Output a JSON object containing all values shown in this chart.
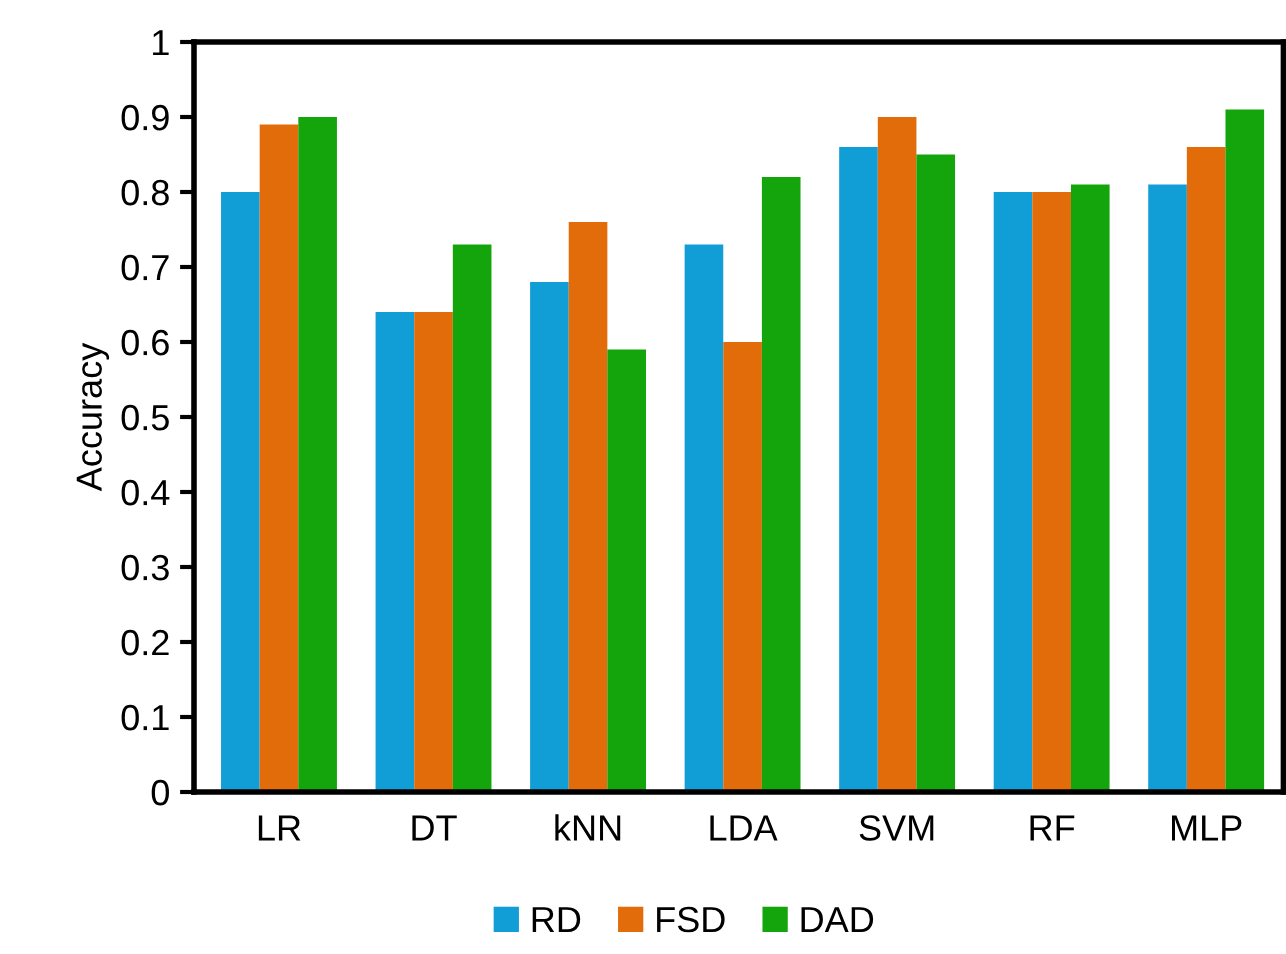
{
  "chart_data": {
    "type": "bar",
    "ylabel": "Accuracy",
    "categories": [
      "LR",
      "DT",
      "kNN",
      "LDA",
      "SVM",
      "RF",
      "MLP"
    ],
    "series": [
      {
        "name": "RD",
        "color": "#119ed6",
        "values": [
          0.8,
          0.64,
          0.68,
          0.73,
          0.86,
          0.8,
          0.81
        ]
      },
      {
        "name": "FSD",
        "color": "#e36c0a",
        "values": [
          0.89,
          0.64,
          0.76,
          0.6,
          0.9,
          0.8,
          0.86
        ]
      },
      {
        "name": "DAD",
        "color": "#13a50b",
        "values": [
          0.9,
          0.73,
          0.59,
          0.82,
          0.85,
          0.81,
          0.91
        ]
      }
    ],
    "ylim": [
      0,
      1
    ],
    "yticks": [
      0,
      0.1,
      0.2,
      0.3,
      0.4,
      0.5,
      0.6,
      0.7,
      0.8,
      0.9,
      1
    ],
    "grid": false,
    "legend": "bottom"
  }
}
